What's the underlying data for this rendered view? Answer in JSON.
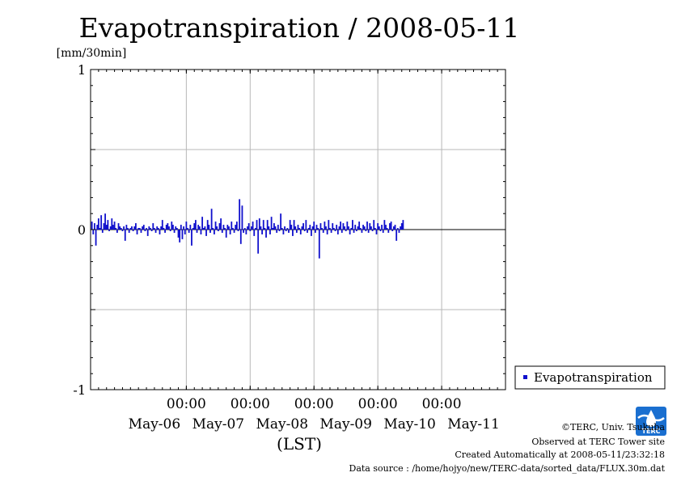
{
  "chart_data": {
    "type": "bar",
    "title": "Evapotranspiration / 2008-05-11",
    "ylabel": "[mm/30min]",
    "xlabel": "(LST)",
    "ylim": [
      -1,
      1
    ],
    "yticks": [
      "1",
      "0",
      "-1"
    ],
    "yticks_values": [
      1,
      0,
      -1
    ],
    "xlim": [
      "2008-05-05T12:00",
      "2008-05-11T24:00"
    ],
    "x_midnight_labels": [
      "00:00",
      "00:00",
      "00:00",
      "00:00",
      "00:00"
    ],
    "x_midnight_times": [
      "2008-05-07T00:00",
      "2008-05-08T00:00",
      "2008-05-09T00:00",
      "2008-05-10T00:00",
      "2008-05-11T00:00"
    ],
    "x_date_labels": [
      "May-06",
      "May-07",
      "May-08",
      "May-09",
      "May-10",
      "May-11"
    ],
    "x_date_times": [
      "2008-05-06T12:00",
      "2008-05-07T12:00",
      "2008-05-08T12:00",
      "2008-05-09T12:00",
      "2008-05-10T12:00",
      "2008-05-11T12:00"
    ],
    "grid": true,
    "legend_position": "bottom-right outside",
    "series": [
      {
        "name": "Evapotranspiration",
        "color": "#1010cc",
        "step_minutes": 30,
        "start": "2008-05-05T12:30",
        "values": [
          0.05,
          -0.03,
          0.04,
          -0.1,
          0.03,
          0.07,
          0.01,
          0.09,
          -0.02,
          0.04,
          0.1,
          0.03,
          0.06,
          -0.01,
          0.02,
          0.07,
          0.03,
          0.05,
          0.01,
          -0.02,
          0.04,
          0.02,
          0.01,
          -0.01,
          0.02,
          -0.07,
          0.03,
          0.01,
          -0.02,
          0.01,
          0.02,
          -0.01,
          0.02,
          0.04,
          -0.03,
          0.01,
          0.01,
          -0.02,
          0.02,
          0.03,
          -0.01,
          0.01,
          -0.04,
          0.02,
          0.01,
          -0.01,
          0.04,
          0.01,
          -0.02,
          0.02,
          0.01,
          -0.03,
          0.02,
          0.06,
          0.01,
          -0.02,
          0.03,
          0.04,
          0.02,
          -0.01,
          0.05,
          0.03,
          -0.02,
          0.02,
          0.01,
          -0.05,
          -0.08,
          0.03,
          -0.06,
          0.02,
          -0.03,
          0.05,
          0.01,
          -0.02,
          0.03,
          -0.1,
          0.01,
          0.04,
          0.06,
          -0.02,
          0.03,
          0.02,
          -0.03,
          0.08,
          0.01,
          0.02,
          -0.04,
          0.06,
          0.03,
          -0.02,
          0.13,
          0.01,
          -0.03,
          0.05,
          0.02,
          -0.01,
          0.04,
          0.07,
          -0.02,
          0.03,
          0.01,
          -0.05,
          0.03,
          0.02,
          -0.03,
          0.05,
          0.01,
          -0.02,
          0.03,
          0.05,
          -0.01,
          0.19,
          -0.09,
          0.15,
          -0.02,
          0.01,
          -0.03,
          0.02,
          0.04,
          -0.01,
          0.02,
          0.05,
          -0.04,
          0.01,
          0.06,
          -0.15,
          0.07,
          0.02,
          -0.03,
          0.06,
          0.01,
          -0.05,
          0.06,
          0.02,
          -0.03,
          0.08,
          0.01,
          0.04,
          0.02,
          -0.02,
          0.03,
          -0.01,
          0.1,
          0.01,
          -0.03,
          0.02,
          -0.01,
          0.01,
          -0.02,
          0.06,
          0.03,
          -0.04,
          0.06,
          0.02,
          -0.02,
          0.03,
          0.01,
          -0.03,
          0.02,
          0.04,
          -0.01,
          0.06,
          -0.02,
          0.01,
          0.03,
          -0.04,
          0.02,
          0.05,
          -0.02,
          0.03,
          0.01,
          -0.18,
          0.04,
          0.01,
          -0.02,
          0.05,
          0.02,
          -0.03,
          0.06,
          0.01,
          -0.02,
          0.04,
          0.01,
          -0.01,
          0.03,
          -0.03,
          0.02,
          0.05,
          -0.02,
          0.04,
          0.02,
          -0.01,
          0.05,
          0.02,
          -0.03,
          0.01,
          0.06,
          -0.02,
          0.03,
          -0.01,
          0.02,
          0.05,
          0.01,
          -0.02,
          0.03,
          0.02,
          -0.01,
          0.05,
          -0.02,
          0.04,
          0.02,
          -0.01,
          0.06,
          0.01,
          -0.03,
          0.04,
          0.02,
          -0.01,
          0.03,
          -0.02,
          0.06,
          0.03,
          0.01,
          -0.02,
          0.04,
          0.05,
          -0.01,
          0.02,
          0.03,
          -0.07,
          0.01,
          -0.02,
          0.02,
          0.04,
          0.06
        ]
      }
    ]
  },
  "footer": {
    "copyright": "©TERC, Univ. Tsukuba",
    "site": "Observed at TERC Tower site",
    "created": "Created Automatically at 2008-05-11/23:32:18",
    "source": "Data source : /home/hojyo/new/TERC-data/sorted_data/FLUX.30m.dat"
  },
  "logo": {
    "icon": "terc-logo-icon",
    "text": "TERC",
    "color": "#1a6fd0"
  }
}
